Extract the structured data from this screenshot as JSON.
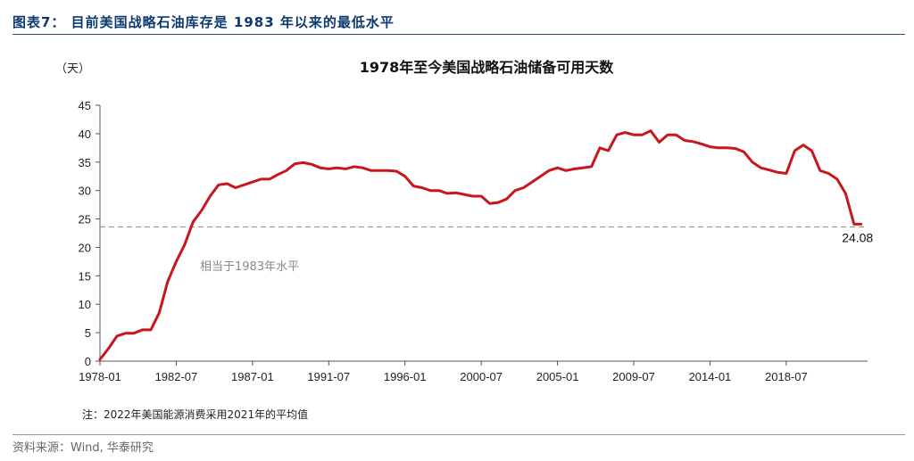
{
  "header": {
    "figure_title": "图表7：  目前美国战略石油库存是 1983 年以来的最低水平"
  },
  "footer": {
    "source": "资料来源：Wind, 华泰研究"
  },
  "colors": {
    "series": "#c8161d",
    "reference_line": "#999999",
    "header_text": "#0d3a6e"
  },
  "chart_data": {
    "type": "line",
    "title": "1978年至今美国战略石油储备可用天数",
    "y_unit": "（天）",
    "ylim": [
      0,
      45
    ],
    "y_ticks": [
      0,
      5,
      10,
      15,
      20,
      25,
      30,
      35,
      40,
      45
    ],
    "x_ticks": [
      "1978-01",
      "1982-07",
      "1987-01",
      "1991-07",
      "1996-01",
      "2000-07",
      "2005-01",
      "2009-07",
      "2014-01",
      "2018-07"
    ],
    "grid": false,
    "legend": "none",
    "series": [
      {
        "x": [
          "1978-01",
          "1978-07",
          "1979-01",
          "1979-07",
          "1980-01",
          "1980-07",
          "1981-01",
          "1981-07",
          "1982-01",
          "1982-07",
          "1983-01",
          "1983-07",
          "1984-01",
          "1984-07",
          "1985-01",
          "1985-07",
          "1986-01",
          "1986-07",
          "1987-01",
          "1987-07",
          "1988-01",
          "1988-07",
          "1989-01",
          "1989-07",
          "1990-01",
          "1990-07",
          "1991-01",
          "1991-07",
          "1992-01",
          "1992-07",
          "1993-01",
          "1993-07",
          "1994-01",
          "1994-07",
          "1995-01",
          "1995-07",
          "1996-01",
          "1996-07",
          "1997-01",
          "1997-07",
          "1998-01",
          "1998-07",
          "1999-01",
          "1999-07",
          "2000-01",
          "2000-07",
          "2001-01",
          "2001-07",
          "2002-01",
          "2002-07",
          "2003-01",
          "2003-07",
          "2004-01",
          "2004-07",
          "2005-01",
          "2005-07",
          "2006-01",
          "2006-07",
          "2007-01",
          "2007-07",
          "2008-01",
          "2008-07",
          "2009-01",
          "2009-07",
          "2010-01",
          "2010-07",
          "2011-01",
          "2011-07",
          "2012-01",
          "2012-07",
          "2013-01",
          "2013-07",
          "2014-01",
          "2014-07",
          "2015-01",
          "2015-07",
          "2016-01",
          "2016-07",
          "2017-01",
          "2017-07",
          "2018-01",
          "2018-07",
          "2019-01",
          "2019-07",
          "2020-01",
          "2020-07",
          "2021-01",
          "2021-07",
          "2022-01",
          "2022-07",
          "2022-12"
        ],
        "y": [
          0.3,
          2.2,
          4.4,
          4.9,
          4.9,
          5.5,
          5.5,
          8.5,
          14.0,
          17.5,
          20.5,
          24.5,
          26.5,
          29.0,
          31.0,
          31.2,
          30.5,
          31.0,
          31.5,
          32.0,
          32.0,
          32.8,
          33.5,
          34.7,
          34.9,
          34.6,
          34.0,
          33.8,
          34.0,
          33.8,
          34.2,
          34.0,
          33.5,
          33.5,
          33.5,
          33.4,
          32.5,
          30.8,
          30.5,
          30.0,
          30.0,
          29.5,
          29.6,
          29.3,
          29.0,
          29.0,
          27.7,
          27.9,
          28.5,
          30.0,
          30.5,
          31.5,
          32.5,
          33.5,
          34.0,
          33.5,
          33.8,
          34.0,
          34.2,
          37.5,
          37.0,
          39.8,
          40.2,
          39.8,
          39.8,
          40.5,
          38.5,
          39.8,
          39.8,
          38.8,
          38.6,
          38.2,
          37.7,
          37.5,
          37.5,
          37.4,
          36.8,
          35.0,
          34.0,
          33.6,
          33.2,
          33.0,
          37.0,
          38.0,
          37.0,
          33.5,
          33.0,
          32.0,
          29.5,
          24.08,
          24.08
        ]
      }
    ],
    "reference_line": {
      "value": 23.6,
      "label": "相当于1983年水平"
    },
    "end_label": "24.08",
    "note": "注：2022年美国能源消费采用2021年的平均值"
  }
}
